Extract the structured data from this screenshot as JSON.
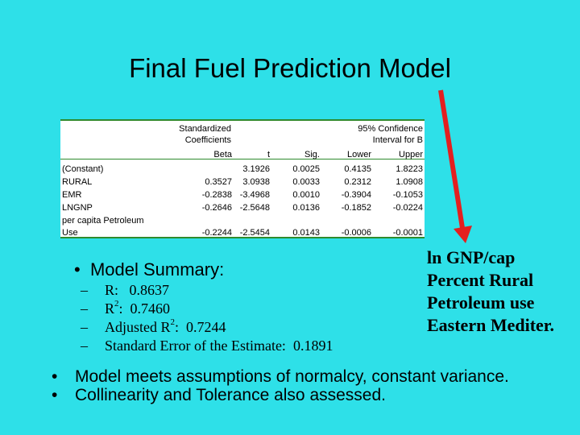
{
  "title": "Final Fuel Prediction Model",
  "table": {
    "header_lines": {
      "standardized": "Standardized",
      "coefficients": "Coefficients",
      "confidence": "95% Confidence",
      "interval": "Interval for B",
      "beta": "Beta",
      "t": "t",
      "sig": "Sig.",
      "lower": "Lower",
      "upper": "Upper"
    },
    "rows": [
      {
        "label": "(Constant)",
        "beta": "",
        "t": "3.1926",
        "sig": "0.0025",
        "lower": "0.4135",
        "upper": "1.8223"
      },
      {
        "label": "RURAL",
        "beta": "0.3527",
        "t": "3.0938",
        "sig": "0.0033",
        "lower": "0.2312",
        "upper": "1.0908"
      },
      {
        "label": "EMR",
        "beta": "-0.2838",
        "t": "-3.4968",
        "sig": "0.0010",
        "lower": "-0.3904",
        "upper": "-0.1053"
      },
      {
        "label": "LNGNP",
        "beta": "-0.2646",
        "t": "-2.5648",
        "sig": "0.0136",
        "lower": "-0.1852",
        "upper": "-0.0224"
      },
      {
        "label": "per capita Petroleum",
        "beta": "",
        "t": "",
        "sig": "",
        "lower": "",
        "upper": ""
      },
      {
        "label": "Use",
        "beta": "-0.2244",
        "t": "-2.5454",
        "sig": "0.0143",
        "lower": "-0.0006",
        "upper": "-0.0001"
      }
    ]
  },
  "summary": {
    "heading": "Model Summary:",
    "items": [
      {
        "label": "R:",
        "value": "0.8637"
      },
      {
        "label": "R",
        "sup": "2",
        "suffix": ":",
        "value": "0.7460"
      },
      {
        "label": "Adjusted R",
        "sup": "2",
        "suffix": ":",
        "value": "0.7244"
      },
      {
        "label": "Standard Error of the Estimate:",
        "value": "0.1891"
      }
    ]
  },
  "predictors": [
    "ln GNP/cap",
    "Percent Rural",
    "Petroleum use",
    "Eastern Mediter."
  ],
  "bullets": [
    "Model meets assumptions of normalcy, constant variance.",
    "Collinearity and Tolerance also assessed."
  ],
  "colors": {
    "background": "#2EE0E8",
    "arrow": "#E41F1F",
    "table_rule": "#2e8b2e"
  }
}
